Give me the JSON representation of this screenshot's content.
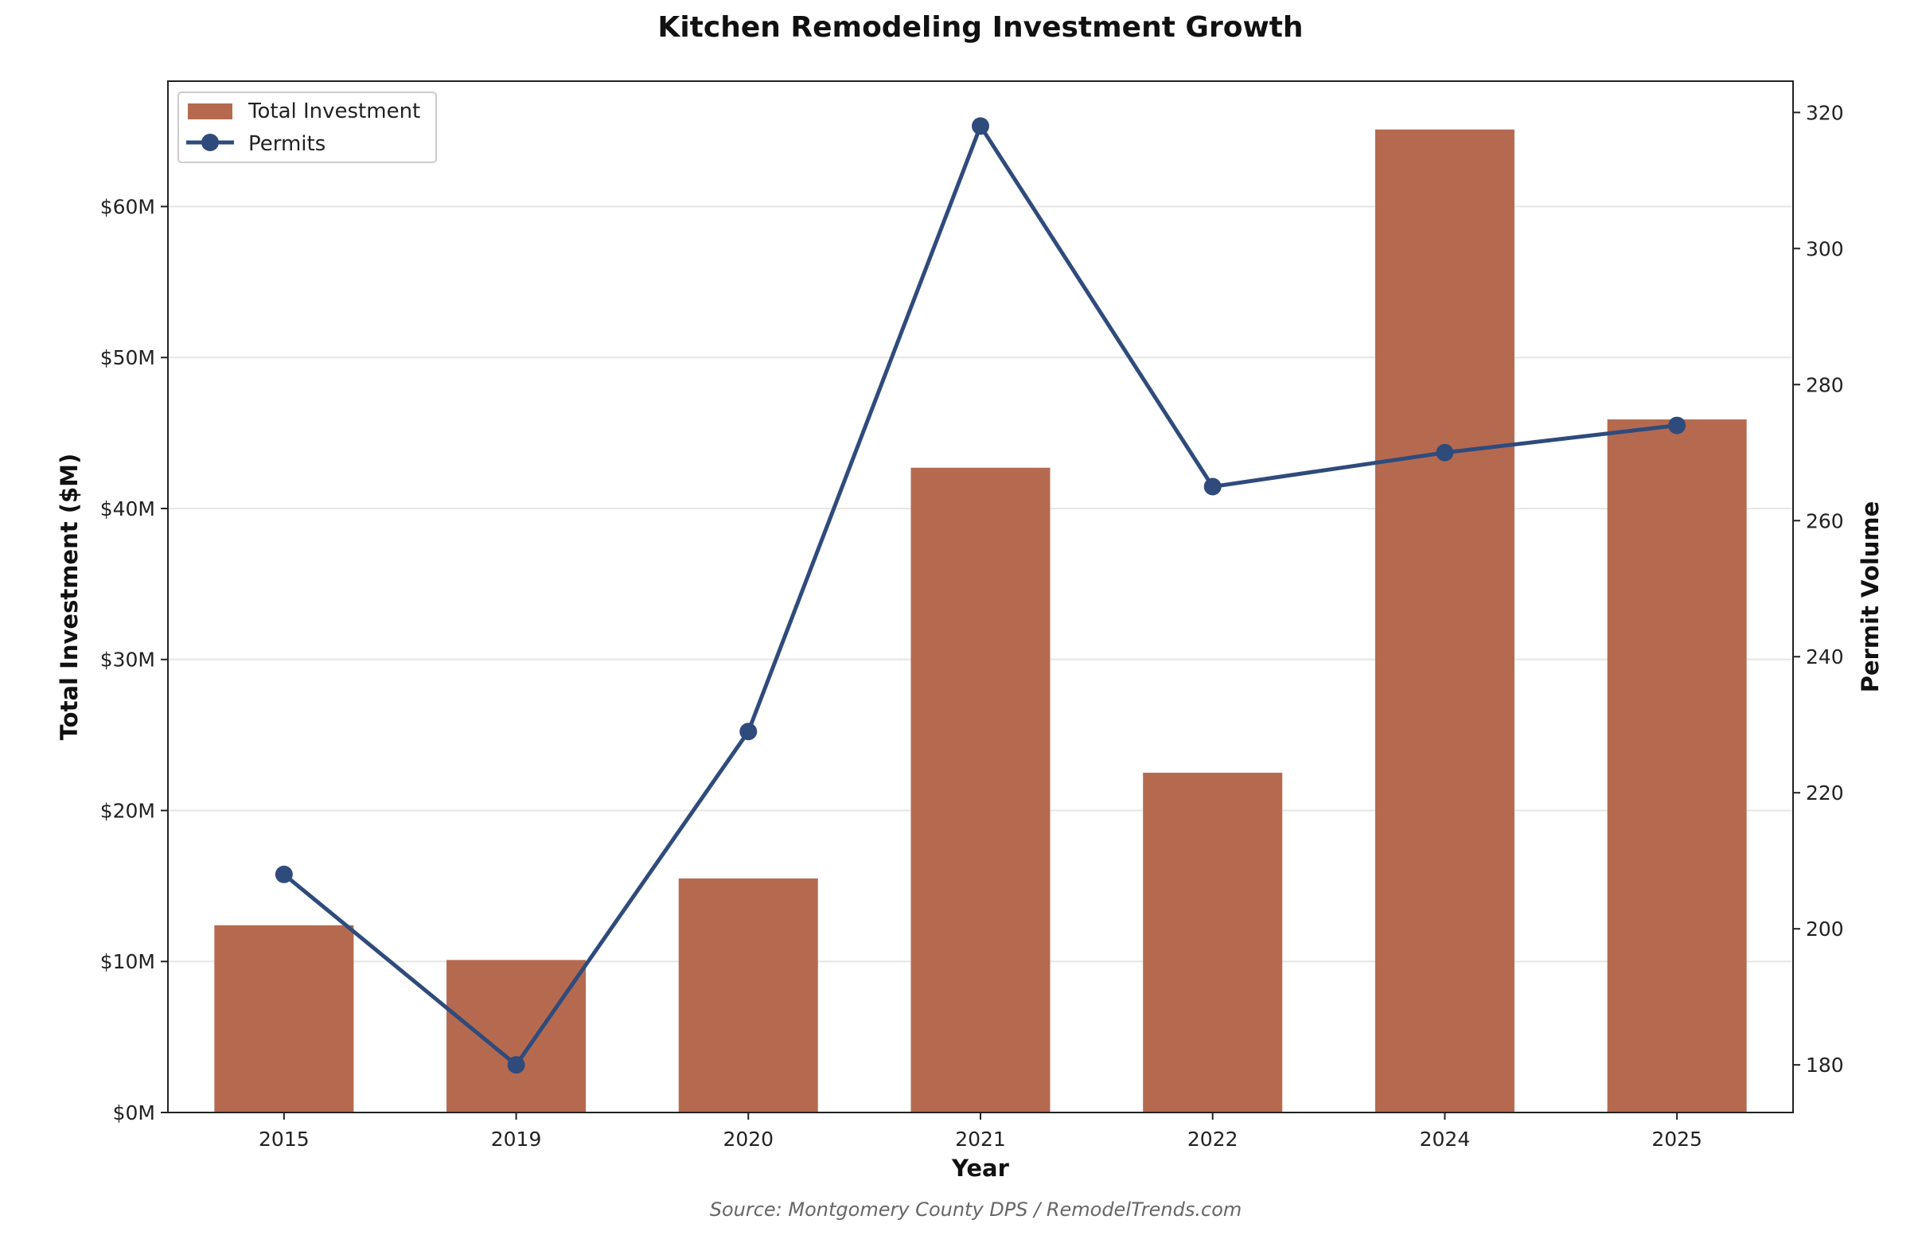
{
  "chart_data": {
    "type": "bar",
    "title": "Kitchen Remodeling Investment Growth",
    "xlabel": "Year",
    "ylabel": "Total Investment ($M)",
    "y2label": "Permit Volume",
    "categories": [
      "2015",
      "2019",
      "2020",
      "2021",
      "2022",
      "2024",
      "2025"
    ],
    "series": [
      {
        "name": "Total Investment",
        "type": "bar",
        "axis": "left",
        "values": [
          12.4,
          10.1,
          15.5,
          42.7,
          22.5,
          65.1,
          45.9
        ]
      },
      {
        "name": "Permits",
        "type": "line",
        "axis": "right",
        "values": [
          208,
          180,
          229,
          318,
          265,
          270,
          274
        ]
      }
    ],
    "ylim": [
      0,
      68.3
    ],
    "y2lim": [
      173.0,
      324.6
    ],
    "yticks": [
      0,
      10,
      20,
      30,
      40,
      50,
      60
    ],
    "ytick_labels": [
      "$0M",
      "$10M",
      "$20M",
      "$30M",
      "$40M",
      "$50M",
      "$60M"
    ],
    "y2ticks": [
      180,
      200,
      220,
      240,
      260,
      280,
      300,
      320
    ],
    "y2tick_labels": [
      "180",
      "200",
      "220",
      "240",
      "260",
      "280",
      "300",
      "320"
    ],
    "grid": "horizontal",
    "legend_position": "top-left",
    "source": "Source: Montgomery County DPS / RemodelTrends.com",
    "colors": {
      "bar": "#b56a50",
      "line": "#2f4b7c",
      "grid": "#e6e6e6",
      "axis": "#222222"
    }
  }
}
